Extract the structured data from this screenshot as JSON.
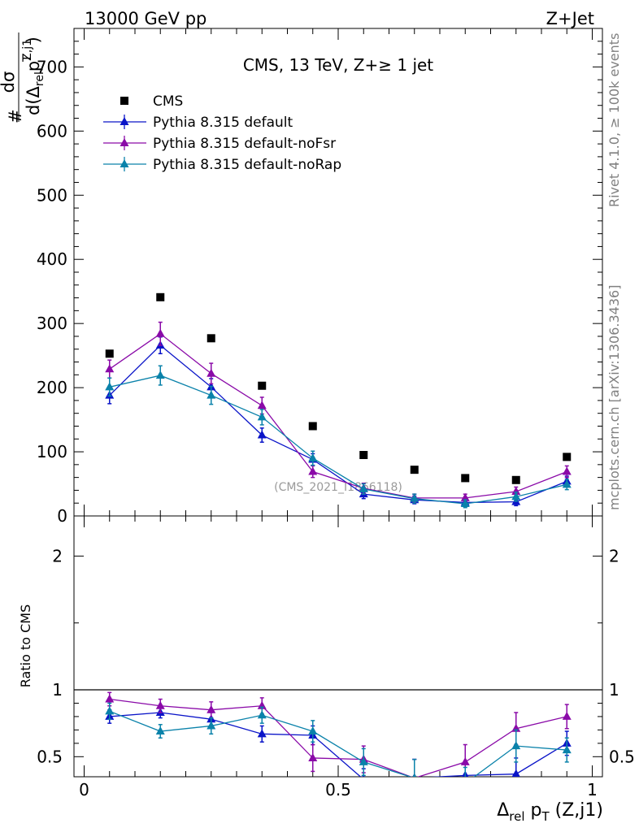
{
  "header": {
    "left_label": "13000 GeV pp",
    "right_label": "Z+Jet"
  },
  "side_labels": {
    "rivet": "Rivet 4.1.0, ≥ 100k events",
    "mcplots": "mcplots.cern.ch [arXiv:1306.3436]"
  },
  "watermark": "(CMS_2021_I1866118)",
  "colors": {
    "cms": "#000000",
    "default": "#0a14c8",
    "noFsr": "#8a0aa8",
    "noRap": "#0a82aa"
  },
  "chart_data": [
    {
      "type": "scatter",
      "title": "CMS, 13 TeV, Z+≥ 1 jet",
      "ylabel": "# dσ/d(Δrel pT Z,j1)",
      "ylabel_parts": {
        "hash": "#",
        "num": "dσ",
        "den_d": "d(Δ",
        "den_rel": "rel",
        "den_p": "p",
        "den_T": "T",
        "den_sup": "Z,j1",
        "den_close": ")"
      },
      "xlim": [
        -0.02,
        1.02
      ],
      "ylim": [
        0,
        760
      ],
      "yticks": [
        0,
        100,
        200,
        300,
        400,
        500,
        600,
        700
      ],
      "x": [
        0.05,
        0.15,
        0.25,
        0.35,
        0.45,
        0.55,
        0.65,
        0.75,
        0.85,
        0.95
      ],
      "series": [
        {
          "key": "cms",
          "name": "CMS",
          "marker": "square",
          "values": [
            253,
            341,
            277,
            203,
            140,
            95,
            72,
            59,
            56,
            92
          ]
        },
        {
          "key": "default",
          "name": "Pythia 8.315 default",
          "marker": "triangle",
          "values": [
            188,
            266,
            201,
            126,
            88,
            34,
            25,
            21,
            22,
            54
          ],
          "errors": [
            13,
            13,
            13,
            11,
            9,
            7,
            6,
            6,
            6,
            8
          ]
        },
        {
          "key": "noFsr",
          "name": "Pythia 8.315 default-noFsr",
          "marker": "triangle",
          "values": [
            229,
            284,
            222,
            172,
            69,
            43,
            28,
            28,
            38,
            69
          ],
          "errors": [
            14,
            18,
            16,
            13,
            9,
            8,
            6,
            6,
            7,
            9
          ]
        },
        {
          "key": "noRap",
          "name": "Pythia 8.315 default-noRap",
          "marker": "triangle",
          "values": [
            201,
            219,
            188,
            154,
            90,
            42,
            27,
            19,
            30,
            49
          ],
          "errors": [
            14,
            15,
            14,
            12,
            11,
            8,
            7,
            6,
            7,
            8
          ]
        }
      ]
    },
    {
      "type": "scatter",
      "title": "",
      "ylabel": "Ratio to CMS",
      "xlabel": "Δrel pT (Z,j1)",
      "xlabel_parts": {
        "delta": "Δ",
        "rel": "rel",
        "p": " p",
        "T": "T",
        "rest": " (Z,j1)"
      },
      "xlim": [
        -0.02,
        1.02
      ],
      "ylim": [
        0.35,
        2.3
      ],
      "yticks": [
        0.5,
        1,
        2
      ],
      "xticks": [
        0,
        0.5,
        1
      ],
      "ref_line": 1,
      "x": [
        0.05,
        0.15,
        0.25,
        0.35,
        0.45,
        0.55,
        0.65,
        0.75,
        0.85,
        0.95
      ],
      "series": [
        {
          "key": "default",
          "name": "Pythia 8.315 default",
          "values": [
            0.8,
            0.83,
            0.78,
            0.67,
            0.66,
            0.33,
            0.34,
            0.36,
            0.37,
            0.6
          ],
          "errors": [
            0.05,
            0.04,
            0.05,
            0.06,
            0.07,
            0.08,
            0.14,
            0.1,
            0.12,
            0.09
          ]
        },
        {
          "key": "noFsr",
          "name": "Pythia 8.315 default-noFsr",
          "values": [
            0.93,
            0.88,
            0.85,
            0.88,
            0.49,
            0.48,
            0.34,
            0.46,
            0.71,
            0.8
          ],
          "errors": [
            0.05,
            0.05,
            0.06,
            0.06,
            0.1,
            0.1,
            0.14,
            0.13,
            0.12,
            0.09
          ]
        },
        {
          "key": "noRap",
          "name": "Pythia 8.315 default-noRap",
          "values": [
            0.84,
            0.69,
            0.73,
            0.81,
            0.69,
            0.46,
            0.34,
            0.3,
            0.58,
            0.55
          ],
          "errors": [
            0.06,
            0.05,
            0.06,
            0.06,
            0.08,
            0.1,
            0.14,
            0.12,
            0.12,
            0.09
          ]
        }
      ]
    }
  ]
}
